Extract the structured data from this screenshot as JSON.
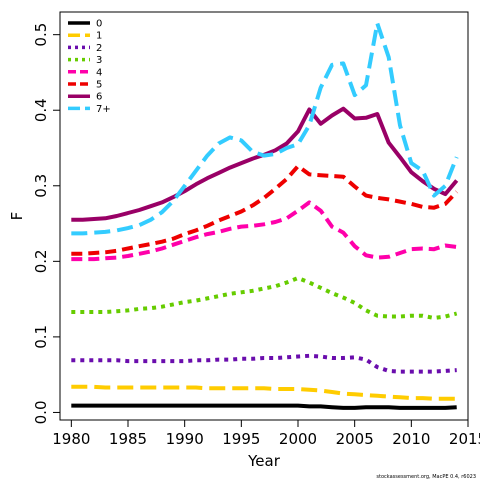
{
  "chart_data": {
    "type": "line",
    "title": "",
    "xlabel": "Year",
    "ylabel": "F",
    "xlim": [
      1979,
      2015
    ],
    "ylim": [
      -0.01,
      0.53
    ],
    "xticks": [
      1980,
      1985,
      1990,
      1995,
      2000,
      2005,
      2010,
      2015
    ],
    "yticks": [
      0.0,
      0.1,
      0.2,
      0.3,
      0.4,
      0.5
    ],
    "ytick_labels": [
      "0.0",
      "0.1",
      "0.2",
      "0.3",
      "0.4",
      "0.5"
    ],
    "grid": false,
    "legend_position": "top-left",
    "footnote": "stockassessment.org, MacPE 0.4, r6023",
    "x": [
      1980,
      1981,
      1982,
      1983,
      1984,
      1985,
      1986,
      1987,
      1988,
      1989,
      1990,
      1991,
      1992,
      1993,
      1994,
      1995,
      1996,
      1997,
      1998,
      1999,
      2000,
      2001,
      2002,
      2003,
      2004,
      2005,
      2006,
      2007,
      2008,
      2009,
      2010,
      2011,
      2012,
      2013,
      2014
    ],
    "series": [
      {
        "name": "0",
        "color": "#000000",
        "dash": "solid",
        "values": [
          0.009,
          0.009,
          0.009,
          0.009,
          0.009,
          0.009,
          0.009,
          0.009,
          0.009,
          0.009,
          0.009,
          0.009,
          0.009,
          0.009,
          0.009,
          0.009,
          0.009,
          0.009,
          0.009,
          0.009,
          0.009,
          0.008,
          0.008,
          0.007,
          0.006,
          0.006,
          0.007,
          0.007,
          0.007,
          0.006,
          0.006,
          0.006,
          0.006,
          0.006,
          0.007
        ]
      },
      {
        "name": "1",
        "color": "#ffcc00",
        "dash": "long",
        "values": [
          0.034,
          0.034,
          0.034,
          0.033,
          0.033,
          0.033,
          0.033,
          0.033,
          0.033,
          0.033,
          0.033,
          0.033,
          0.032,
          0.032,
          0.032,
          0.032,
          0.032,
          0.032,
          0.031,
          0.031,
          0.031,
          0.03,
          0.029,
          0.027,
          0.025,
          0.024,
          0.023,
          0.022,
          0.021,
          0.02,
          0.019,
          0.019,
          0.018,
          0.018,
          0.018
        ]
      },
      {
        "name": "2",
        "color": "#6a0dad",
        "dash": "dotted",
        "values": [
          0.069,
          0.069,
          0.069,
          0.069,
          0.069,
          0.068,
          0.068,
          0.068,
          0.068,
          0.068,
          0.068,
          0.069,
          0.069,
          0.07,
          0.07,
          0.071,
          0.071,
          0.072,
          0.072,
          0.073,
          0.074,
          0.075,
          0.074,
          0.072,
          0.072,
          0.073,
          0.07,
          0.06,
          0.055,
          0.054,
          0.054,
          0.054,
          0.054,
          0.055,
          0.056
        ]
      },
      {
        "name": "3",
        "color": "#66cc00",
        "dash": "dotted",
        "values": [
          0.133,
          0.133,
          0.133,
          0.133,
          0.134,
          0.135,
          0.137,
          0.138,
          0.14,
          0.143,
          0.146,
          0.148,
          0.151,
          0.154,
          0.157,
          0.159,
          0.161,
          0.164,
          0.167,
          0.172,
          0.178,
          0.172,
          0.165,
          0.158,
          0.152,
          0.145,
          0.135,
          0.128,
          0.127,
          0.127,
          0.128,
          0.128,
          0.125,
          0.127,
          0.131
        ]
      },
      {
        "name": "4",
        "color": "#ff00aa",
        "dash": "medium",
        "values": [
          0.203,
          0.203,
          0.203,
          0.204,
          0.205,
          0.207,
          0.21,
          0.213,
          0.217,
          0.222,
          0.227,
          0.232,
          0.236,
          0.239,
          0.243,
          0.246,
          0.247,
          0.249,
          0.252,
          0.257,
          0.267,
          0.278,
          0.267,
          0.246,
          0.238,
          0.22,
          0.208,
          0.205,
          0.206,
          0.211,
          0.216,
          0.217,
          0.216,
          0.221,
          0.219
        ]
      },
      {
        "name": "5",
        "color": "#ee0000",
        "dash": "medium",
        "values": [
          0.21,
          0.21,
          0.211,
          0.212,
          0.214,
          0.217,
          0.22,
          0.223,
          0.226,
          0.23,
          0.236,
          0.241,
          0.247,
          0.254,
          0.26,
          0.266,
          0.274,
          0.284,
          0.296,
          0.309,
          0.326,
          0.315,
          0.314,
          0.313,
          0.312,
          0.299,
          0.287,
          0.284,
          0.282,
          0.279,
          0.276,
          0.272,
          0.271,
          0.276,
          0.292
        ]
      },
      {
        "name": "6",
        "color": "#990066",
        "dash": "solid",
        "values": [
          0.255,
          0.255,
          0.256,
          0.257,
          0.26,
          0.264,
          0.268,
          0.273,
          0.278,
          0.285,
          0.293,
          0.302,
          0.31,
          0.317,
          0.324,
          0.33,
          0.336,
          0.341,
          0.347,
          0.356,
          0.372,
          0.401,
          0.382,
          0.393,
          0.402,
          0.389,
          0.39,
          0.395,
          0.357,
          0.338,
          0.318,
          0.306,
          0.296,
          0.289,
          0.307
        ]
      },
      {
        "name": "7+",
        "color": "#33ccff",
        "dash": "long",
        "values": [
          0.237,
          0.237,
          0.238,
          0.239,
          0.241,
          0.244,
          0.248,
          0.255,
          0.265,
          0.28,
          0.3,
          0.32,
          0.34,
          0.356,
          0.364,
          0.36,
          0.345,
          0.34,
          0.342,
          0.35,
          0.355,
          0.38,
          0.43,
          0.46,
          0.462,
          0.42,
          0.433,
          0.515,
          0.47,
          0.38,
          0.33,
          0.32,
          0.287,
          0.3,
          0.338
        ]
      }
    ]
  }
}
